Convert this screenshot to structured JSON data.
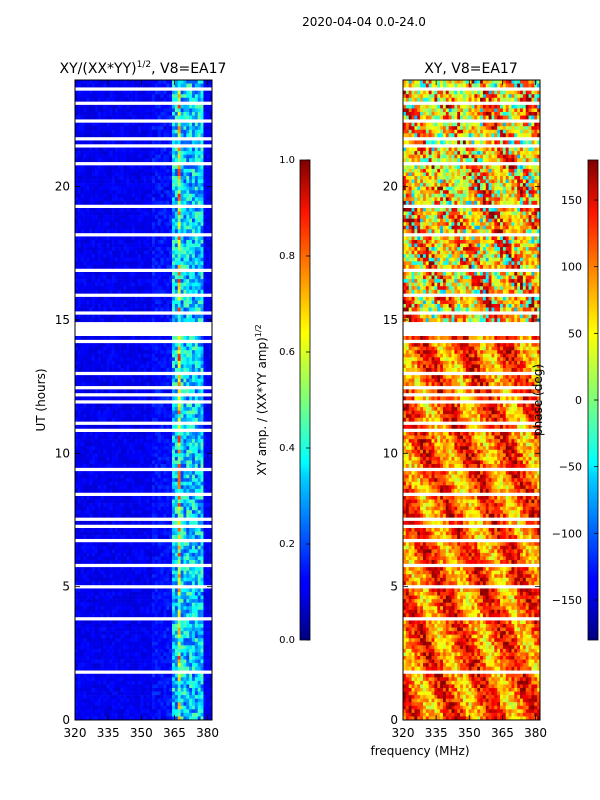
{
  "figure": {
    "suptitle": "2020-04-04 0.0-24.0",
    "shared_xlabel": "frequency (MHz)"
  },
  "chart_data": [
    {
      "type": "heatmap",
      "title_main": "XY/(XX*YY)",
      "title_sup": "1/2",
      "title_tail": ", V8=EA17",
      "ylabel": "UT (hours)",
      "xlim": [
        320,
        382
      ],
      "ylim": [
        0,
        24
      ],
      "xticks": [
        320,
        335,
        350,
        365,
        380
      ],
      "yticks": [
        0,
        5,
        10,
        15,
        20
      ],
      "band_mhz": [
        364,
        378
      ],
      "band_columns_mhz": [
        365.5,
        369.0,
        372.5,
        376.0
      ],
      "gap_hours": [
        14.4,
        14.9
      ],
      "colorbar": {
        "label_main": "XY amp. / (XX*YY amp)",
        "label_sup": "1/2",
        "range": [
          0.0,
          1.0
        ],
        "ticks": [
          "0.0",
          "0.2",
          "0.4",
          "0.6",
          "0.8",
          "1.0"
        ]
      }
    },
    {
      "type": "heatmap",
      "title": "XY, V8=EA17",
      "ylabel": "",
      "xlim": [
        320,
        382
      ],
      "ylim": [
        0,
        24
      ],
      "xticks": [
        320,
        335,
        350,
        365,
        380
      ],
      "yticks": [
        0,
        5,
        10,
        15,
        20
      ],
      "gap_hours": [
        14.4,
        14.9
      ],
      "colorbar": {
        "label": "phase (deg)",
        "range": [
          -180,
          180
        ],
        "ticks": [
          "150",
          "100",
          "50",
          "0",
          "−50",
          "−100",
          "−150"
        ],
        "tick_values": [
          150,
          100,
          50,
          0,
          -50,
          -100,
          -150
        ]
      }
    }
  ]
}
